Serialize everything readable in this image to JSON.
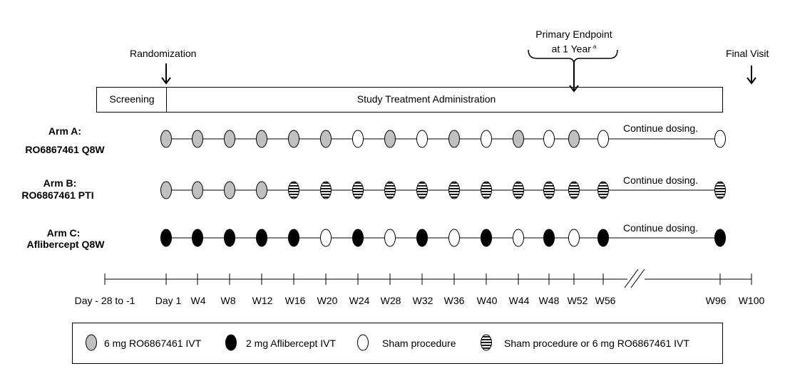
{
  "top": {
    "randomization": "Randomization",
    "primary_endpoint_line1": "Primary Endpoint",
    "primary_endpoint_line2": "at 1 Year",
    "primary_endpoint_sup": "a",
    "final_visit": "Final Visit"
  },
  "phases": {
    "screening": "Screening",
    "treatment": "Study Treatment Administration"
  },
  "arms": [
    {
      "label_line1": "Arm A:",
      "label_line2": "RO6867461 Q8W",
      "continue": "Continue dosing.",
      "doses": [
        "ro",
        "ro",
        "ro",
        "ro",
        "ro",
        "ro",
        "sham",
        "ro",
        "sham",
        "ro",
        "sham",
        "ro",
        "sham",
        "ro",
        "sham"
      ],
      "final_dose": "sham"
    },
    {
      "label_line1": "Arm B:",
      "label_line2": "RO6867461 PTI",
      "continue": "Continue dosing.",
      "doses": [
        "ro",
        "ro",
        "ro",
        "ro",
        "either",
        "either",
        "either",
        "either",
        "either",
        "either",
        "either",
        "either",
        "either",
        "either",
        "either"
      ],
      "final_dose": "either"
    },
    {
      "label_line1": "Arm C:",
      "label_line2": "Aflibercept Q8W",
      "continue": "Continue dosing.",
      "doses": [
        "afl",
        "afl",
        "afl",
        "afl",
        "afl",
        "sham",
        "afl",
        "sham",
        "afl",
        "sham",
        "afl",
        "sham",
        "afl",
        "sham",
        "afl"
      ],
      "final_dose": "afl"
    }
  ],
  "timeline": {
    "screening_label": "Day - 28 to -1",
    "ticks": [
      "Day 1",
      "W4",
      "W8",
      "W12",
      "W16",
      "W20",
      "W24",
      "W28",
      "W32",
      "W36",
      "W40",
      "W44",
      "W48",
      "W52",
      "W56"
    ],
    "final_ticks": [
      "W96",
      "W100"
    ]
  },
  "legend": [
    {
      "symbol": "ro",
      "label": "6 mg RO6867461 IVT"
    },
    {
      "symbol": "afl",
      "label": "2 mg Aflibercept IVT"
    },
    {
      "symbol": "sham",
      "label": "Sham procedure"
    },
    {
      "symbol": "either",
      "label": "Sham procedure or 6 mg RO6867461 IVT"
    }
  ],
  "colors": {
    "ro": "#c0c0c0",
    "afl": "#000000",
    "sham": "#ffffff",
    "stroke": "#000000"
  }
}
